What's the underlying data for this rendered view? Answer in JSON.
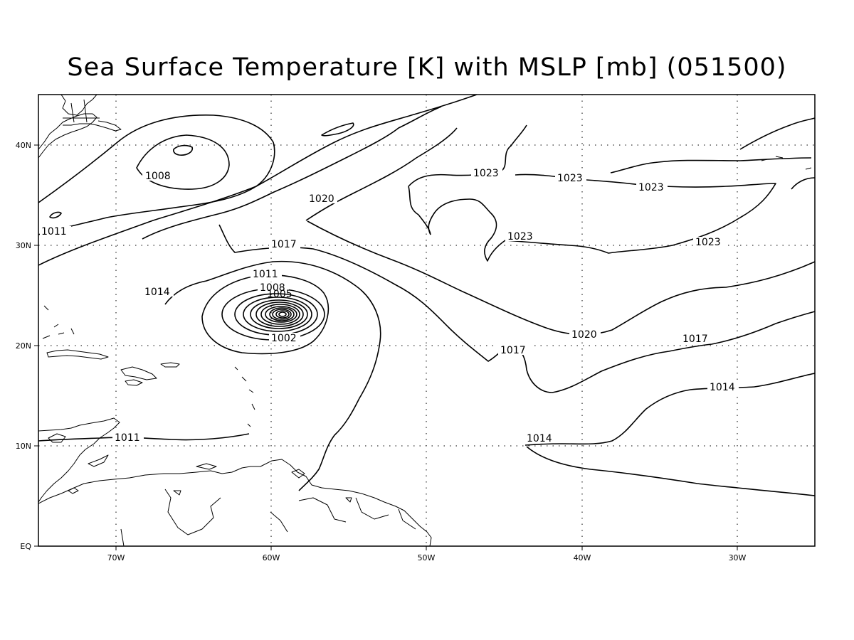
{
  "title": "Sea Surface Temperature [K] with MSLP [mb] (051500)",
  "map": {
    "extent": {
      "lon_west": -75,
      "lon_east": -25,
      "lat_south": 0,
      "lat_north": 45
    },
    "lat_ticks": [
      "40N",
      "30N",
      "20N",
      "10N",
      "EQ"
    ],
    "lon_ticks": [
      "70W",
      "60W",
      "50W",
      "40W",
      "30W"
    ],
    "grid": "dotted",
    "contour_variable": "MSLP",
    "contour_units": "mb",
    "contour_interval": 3,
    "contour_labels": [
      "1008",
      "1011",
      "1020",
      "1017",
      "1011",
      "1014",
      "1008",
      "1005",
      "1002",
      "1023",
      "1023",
      "1023",
      "1023",
      "1023",
      "1020",
      "1017",
      "1017",
      "1014",
      "1014",
      "1011"
    ],
    "low_center": {
      "lon": -59.3,
      "lat": 22.8
    }
  }
}
